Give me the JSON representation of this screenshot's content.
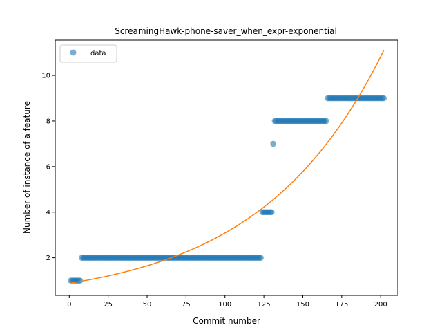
{
  "chart_data": {
    "type": "scatter",
    "title": "ScreamingHawk-phone-saver_when_expr-exponential",
    "xlabel": "Commit number",
    "ylabel": "Number of instance of a feature",
    "xlim": [
      -9,
      211
    ],
    "ylim": [
      0.35,
      11.55
    ],
    "xticks": [
      0,
      25,
      50,
      75,
      100,
      125,
      150,
      175,
      200
    ],
    "yticks": [
      2,
      4,
      6,
      8,
      10
    ],
    "grid": false,
    "legend": {
      "placement": "top-left",
      "entries": [
        "data"
      ]
    },
    "colors": {
      "data": "#1f77b4",
      "fit": "#ff7f0e"
    },
    "series": [
      {
        "name": "data",
        "kind": "scatter",
        "runs": [
          {
            "x_start": 1,
            "x_end": 7,
            "y": 1
          },
          {
            "x_start": 8,
            "x_end": 123,
            "y": 2
          },
          {
            "x_start": 124,
            "x_end": 130,
            "y": 4
          },
          {
            "x_start": 131,
            "x_end": 131,
            "y": 7
          },
          {
            "x_start": 132,
            "x_end": 165,
            "y": 8
          },
          {
            "x_start": 166,
            "x_end": 202,
            "y": 9
          }
        ]
      },
      {
        "name": "",
        "kind": "line",
        "model": "exponential",
        "a": 0.88,
        "b": 0.01255,
        "x_range": [
          1,
          202
        ]
      }
    ]
  }
}
